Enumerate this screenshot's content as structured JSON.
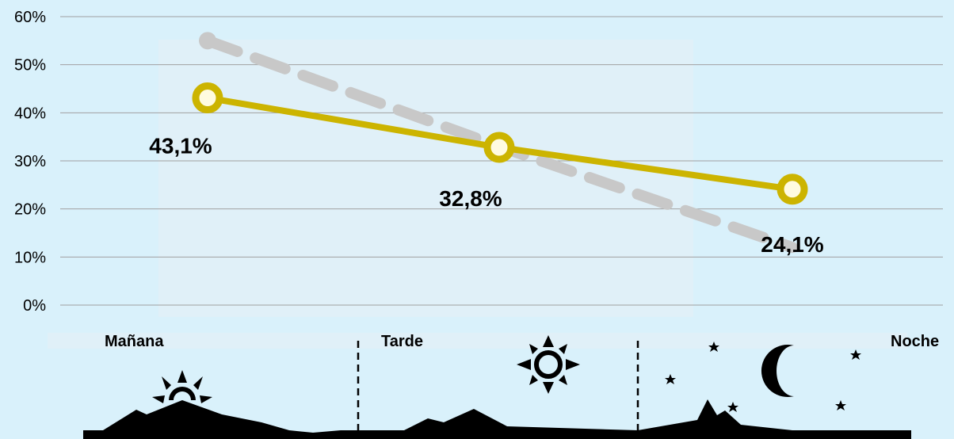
{
  "chart_data": {
    "type": "line",
    "categories": [
      "Mañana",
      "Tarde",
      "Noche"
    ],
    "series": [
      {
        "values": [
          43.1,
          32.8,
          24.1
        ],
        "style": "solid",
        "color": "#ccb400",
        "data_labels": [
          "43,1%",
          "32,8%",
          "24,1%"
        ]
      },
      {
        "values": [
          55,
          33,
          12
        ],
        "style": "dashed",
        "color": "#c8c8c8"
      }
    ],
    "y_ticks": [
      "0%",
      "10%",
      "20%",
      "30%",
      "40%",
      "50%",
      "60%"
    ],
    "ylim": [
      0,
      60
    ],
    "grid": true,
    "title": "",
    "xlabel": "",
    "ylabel": ""
  },
  "period_labels": [
    "Mañana",
    "Tarde",
    "Noche"
  ],
  "icons": {
    "morning": "sunrise-icon",
    "afternoon": "sun-icon",
    "night": "moon-icon",
    "stars": "star-icon",
    "landscape": "mountain-silhouette"
  },
  "colors": {
    "background": "#d9f1fb",
    "panel": "#e0f0f8",
    "primary_line": "#ccb400",
    "secondary_line": "#c8c8c8",
    "grid": "#a0a0a0"
  }
}
